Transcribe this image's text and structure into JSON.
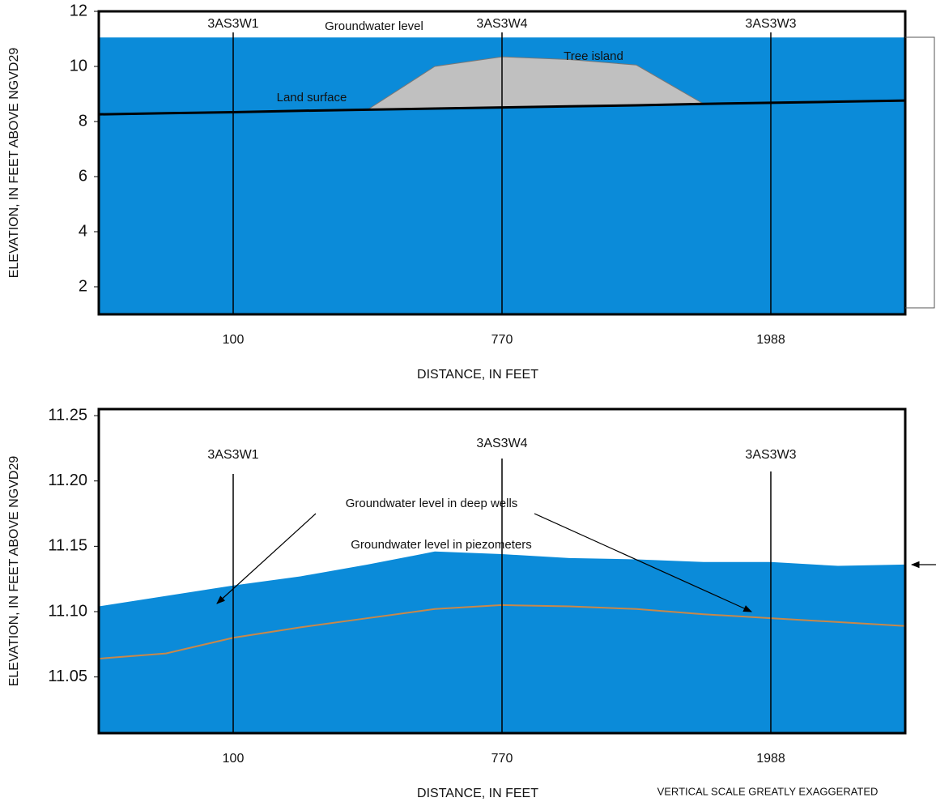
{
  "chart_data": [
    {
      "type": "area",
      "y_label": "ELEVATION, IN FEET ABOVE NGVD29",
      "x_label": "DISTANCE, IN FEET",
      "categories": [
        null,
        null,
        "100",
        null,
        null,
        null,
        "770",
        null,
        null,
        null,
        "1988",
        null,
        null
      ],
      "well_names": [
        "3AS3W1",
        "3AS3W4",
        "3AS3W3"
      ],
      "ylim": [
        1,
        12
      ],
      "yticks": [
        2,
        4,
        6,
        8,
        10,
        12
      ],
      "series": [
        {
          "name": "Groundwater level",
          "color": "#0b8bd9",
          "kind": "area",
          "values": [
            11.05,
            11.05,
            11.05,
            11.05,
            11.05,
            11.05,
            11.05,
            11.05,
            11.05,
            11.05,
            11.05,
            11.05,
            11.05
          ]
        },
        {
          "name": "Tree island",
          "color": "#c0c0c0",
          "kind": "polygon",
          "values": [
            null,
            null,
            null,
            null,
            8.43,
            10.0,
            10.35,
            10.25,
            10.05,
            8.64,
            null,
            null,
            null
          ]
        },
        {
          "name": "Land surface",
          "color": "#000000",
          "kind": "line",
          "values": [
            8.26,
            8.3,
            8.34,
            8.39,
            8.43,
            8.47,
            8.51,
            8.55,
            8.59,
            8.64,
            8.68,
            8.72,
            8.76
          ]
        }
      ]
    },
    {
      "type": "area",
      "y_label": "ELEVATION, IN FEET ABOVE NGVD29",
      "x_label": "DISTANCE, IN FEET",
      "note": "VERTICAL SCALE GREATLY EXAGGERATED",
      "categories": [
        null,
        null,
        "100",
        null,
        null,
        null,
        "770",
        null,
        null,
        null,
        "1988",
        null,
        null
      ],
      "well_names": [
        "3AS3W1",
        "3AS3W4",
        "3AS3W3"
      ],
      "ylim": [
        11.007,
        11.255
      ],
      "yticks": [
        11.05,
        {
          "value": 11.1,
          "label": "11.10"
        },
        11.15,
        {
          "value": 11.2,
          "label": "11.20"
        },
        11.25
      ],
      "series": [
        {
          "name": "Groundwater level in piezometers",
          "color": "#0b8bd9",
          "kind": "area",
          "values": [
            11.104,
            11.112,
            11.12,
            11.127,
            11.136,
            11.146,
            11.144,
            11.141,
            11.14,
            11.138,
            11.138,
            11.135,
            11.136
          ]
        },
        {
          "name": "Groundwater level in deep wells",
          "color": "#c8884a",
          "kind": "line",
          "values": [
            11.064,
            11.068,
            11.08,
            11.088,
            11.095,
            11.102,
            11.105,
            11.104,
            11.102,
            11.098,
            11.095,
            11.092,
            11.089
          ]
        }
      ]
    }
  ]
}
